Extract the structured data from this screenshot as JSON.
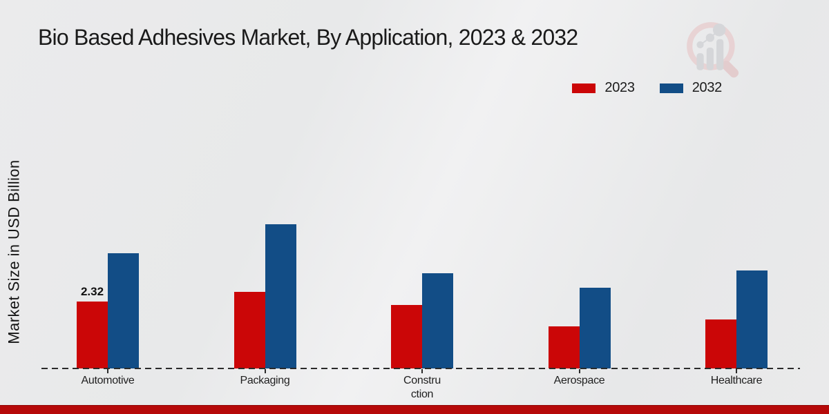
{
  "page": {
    "bottom_band_color": "#b60909",
    "logo": {
      "name": "magnifier-bar-chart-watermark",
      "ring_color": "#e8cfd0",
      "handle_color": "#e3c7c9",
      "bars_color": "#d2d3d6"
    }
  },
  "chart_data": {
    "type": "bar",
    "title": "Bio Based Adhesives Market, By Application, 2023 & 2032",
    "ylabel": "Market Size in USD Billion",
    "xlabel": "",
    "categories": [
      "Automotive",
      "Packaging",
      "Construction",
      "Aerospace",
      "Healthcare"
    ],
    "categories_display": [
      "Automotive",
      "Packaging",
      "Constru\nction",
      "Aerospace",
      "Healthcare"
    ],
    "series": [
      {
        "name": "2023",
        "color": "#cb0607",
        "values": [
          2.32,
          2.65,
          2.2,
          1.45,
          1.7
        ]
      },
      {
        "name": "2032",
        "color": "#124d86",
        "values": [
          4.0,
          5.0,
          3.3,
          2.8,
          3.4
        ]
      }
    ],
    "annotations": [
      {
        "series_index": 0,
        "category_index": 0,
        "text": "2.32"
      }
    ],
    "ylim": [
      0,
      5.6
    ],
    "grid": false,
    "legend_position": "top-right",
    "baseline_style": "dashed",
    "y_ticks_shown": false
  }
}
